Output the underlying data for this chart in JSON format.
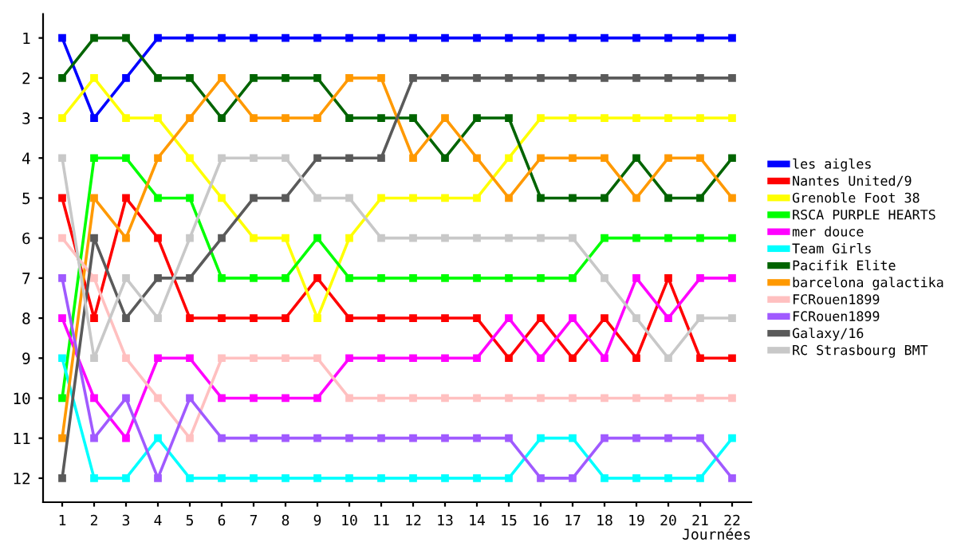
{
  "chart_data": {
    "type": "line",
    "xlabel": "Journées",
    "x": [
      1,
      2,
      3,
      4,
      5,
      6,
      7,
      8,
      9,
      10,
      11,
      12,
      13,
      14,
      15,
      16,
      17,
      18,
      19,
      20,
      21,
      22
    ],
    "xlim": [
      0.4,
      22.6
    ],
    "xticks": [
      1,
      2,
      3,
      4,
      5,
      6,
      7,
      8,
      9,
      10,
      11,
      12,
      13,
      14,
      15,
      16,
      17,
      18,
      19,
      20,
      21,
      22
    ],
    "ylim": [
      12.6,
      0.4
    ],
    "yticks": [
      1,
      2,
      3,
      4,
      5,
      6,
      7,
      8,
      9,
      10,
      11,
      12
    ],
    "grid": false,
    "legend": "right",
    "marker": "square",
    "line_style": "solid",
    "series": [
      {
        "name": "les aigles",
        "color": "#0000ff",
        "values": [
          1,
          3,
          2,
          1,
          1,
          1,
          1,
          1,
          1,
          1,
          1,
          1,
          1,
          1,
          1,
          1,
          1,
          1,
          1,
          1,
          1,
          1
        ]
      },
      {
        "name": "Nantes United/9",
        "color": "#ff0000",
        "values": [
          5,
          8,
          5,
          6,
          8,
          8,
          8,
          8,
          7,
          8,
          8,
          8,
          8,
          8,
          9,
          8,
          9,
          8,
          9,
          7,
          9,
          9
        ]
      },
      {
        "name": "Grenoble Foot 38",
        "color": "#ffff00",
        "values": [
          3,
          2,
          3,
          3,
          4,
          5,
          6,
          6,
          8,
          6,
          5,
          5,
          5,
          5,
          4,
          3,
          3,
          3,
          3,
          3,
          3,
          3
        ]
      },
      {
        "name": "RSCA PURPLE HEARTS",
        "color": "#00ff00",
        "values": [
          10,
          4,
          4,
          5,
          5,
          7,
          7,
          7,
          6,
          7,
          7,
          7,
          7,
          7,
          7,
          7,
          7,
          6,
          6,
          6,
          6,
          6
        ]
      },
      {
        "name": "mer douce",
        "color": "#ff00ff",
        "values": [
          8,
          10,
          11,
          9,
          9,
          10,
          10,
          10,
          10,
          9,
          9,
          9,
          9,
          9,
          8,
          9,
          8,
          9,
          7,
          8,
          7,
          7
        ]
      },
      {
        "name": "Team Girls",
        "color": "#00ffff",
        "values": [
          9,
          12,
          12,
          11,
          12,
          12,
          12,
          12,
          12,
          12,
          12,
          12,
          12,
          12,
          12,
          11,
          11,
          12,
          12,
          12,
          12,
          11
        ]
      },
      {
        "name": "Pacifik Elite",
        "color": "#006400",
        "values": [
          2,
          1,
          1,
          2,
          2,
          3,
          2,
          2,
          2,
          3,
          3,
          3,
          4,
          3,
          3,
          5,
          5,
          5,
          4,
          5,
          5,
          4
        ]
      },
      {
        "name": "barcelona galactika",
        "color": "#ff9900",
        "values": [
          11,
          5,
          6,
          4,
          3,
          2,
          3,
          3,
          3,
          2,
          2,
          4,
          3,
          4,
          5,
          4,
          4,
          4,
          5,
          4,
          4,
          5
        ]
      },
      {
        "name": "FCRouen1899",
        "color": "#ffc0c0",
        "values": [
          6,
          7,
          9,
          10,
          11,
          9,
          9,
          9,
          9,
          10,
          10,
          10,
          10,
          10,
          10,
          10,
          10,
          10,
          10,
          10,
          10,
          10
        ]
      },
      {
        "name": "FCRouen1899",
        "color": "#a05aff",
        "values": [
          7,
          11,
          10,
          12,
          10,
          11,
          11,
          11,
          11,
          11,
          11,
          11,
          11,
          11,
          11,
          12,
          12,
          11,
          11,
          11,
          11,
          12
        ]
      },
      {
        "name": "Galaxy/16",
        "color": "#5a5a5a",
        "values": [
          12,
          6,
          8,
          7,
          7,
          6,
          5,
          5,
          4,
          4,
          4,
          2,
          2,
          2,
          2,
          2,
          2,
          2,
          2,
          2,
          2,
          2
        ]
      },
      {
        "name": "RC Strasbourg BMT",
        "color": "#c8c8c8",
        "values": [
          4,
          9,
          7,
          8,
          6,
          4,
          4,
          4,
          5,
          5,
          6,
          6,
          6,
          6,
          6,
          6,
          6,
          7,
          8,
          9,
          8,
          8
        ]
      }
    ]
  }
}
